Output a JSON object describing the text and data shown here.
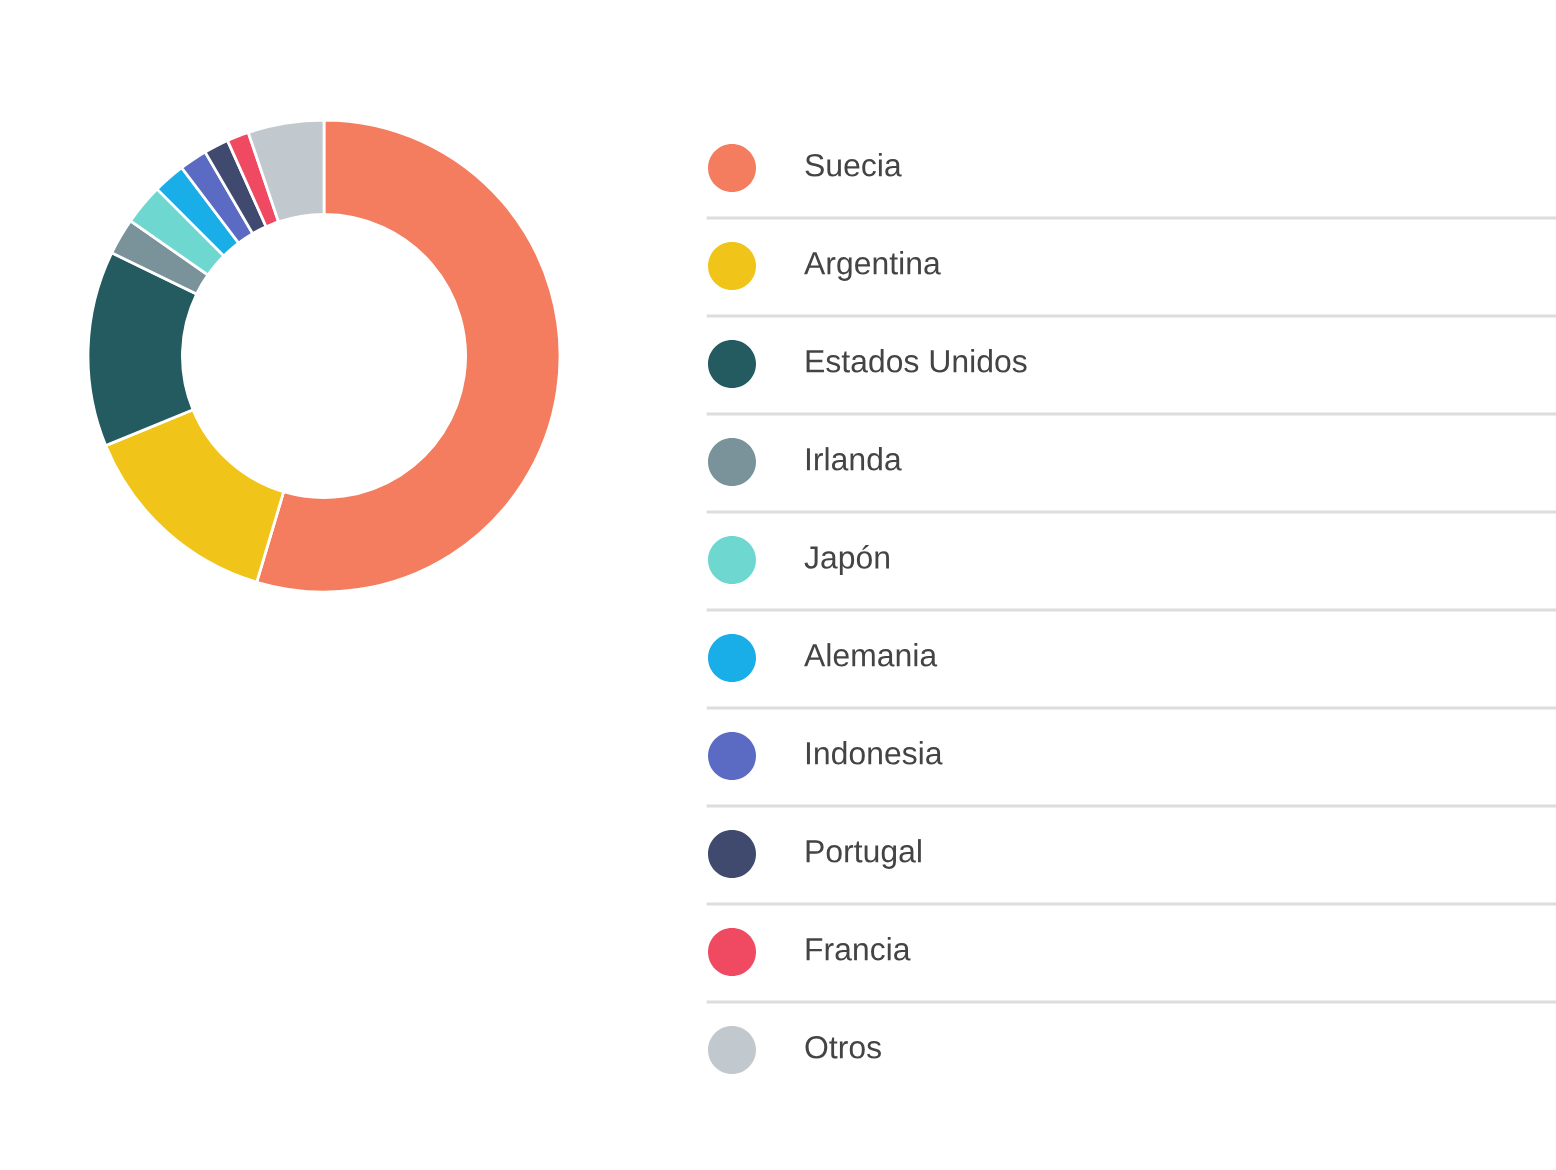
{
  "chart_data": {
    "type": "donut",
    "categories": [
      "Suecia",
      "Argentina",
      "Estados Unidos",
      "Irlanda",
      "Japón",
      "Alemania",
      "Indonesia",
      "Portugal",
      "Francia",
      "Otros"
    ],
    "values": [
      54.6,
      14.2,
      13.4,
      2.5,
      2.8,
      2.2,
      1.9,
      1.7,
      1.5,
      5.2
    ],
    "colors": [
      "#f47c5f",
      "#f0c419",
      "#235b60",
      "#7a9299",
      "#6ed8d0",
      "#1aaee8",
      "#5b6bc4",
      "#3f4a6e",
      "#ef4a62",
      "#c1c9ce"
    ],
    "legend": "right"
  }
}
